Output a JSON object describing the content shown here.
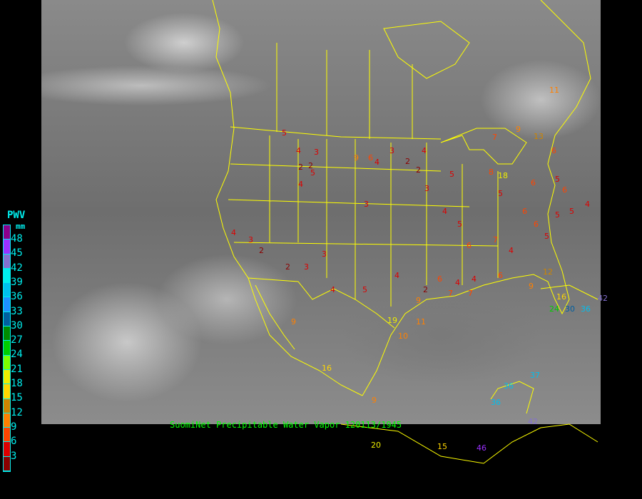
{
  "legend": {
    "title": "PWV",
    "unit": "mm",
    "ticks": [
      "48",
      "45",
      "42",
      "39",
      "36",
      "33",
      "30",
      "27",
      "24",
      "21",
      "18",
      "15",
      "12",
      "9",
      "6",
      "3"
    ],
    "colors": [
      "#8b008b",
      "#9b30ff",
      "#8470d0",
      "#00eeee",
      "#00bfee",
      "#1e90ff",
      "#005f9f",
      "#008b00",
      "#00cd00",
      "#7fff00",
      "#eeee00",
      "#ffd700",
      "#cd8500",
      "#ff8000",
      "#ff4500",
      "#dd0000",
      "#8b0000"
    ]
  },
  "caption": "SuomiNet Precipitable Water Vapor 120113/1945",
  "boundary_color": "#ffff00",
  "stations": [
    "5",
    "4",
    "3",
    "5",
    "4",
    "2",
    "2",
    "3",
    "4",
    "9",
    "6",
    "3",
    "2",
    "4",
    "2",
    "3",
    "5",
    "7",
    "4",
    "5",
    "6",
    "7",
    "9",
    "13",
    "6",
    "8",
    "5",
    "6",
    "6",
    "4",
    "3",
    "2",
    "2",
    "3",
    "3",
    "4",
    "5",
    "4",
    "2",
    "6",
    "4",
    "4",
    "4",
    "5",
    "5",
    "5",
    "4",
    "5",
    "6",
    "6",
    "6",
    "7",
    "7",
    "9",
    "12",
    "16",
    "24",
    "30",
    "36",
    "42",
    "9",
    "16",
    "18",
    "20",
    "15",
    "9",
    "11",
    "10",
    "9",
    "19",
    "11",
    "46",
    "36",
    "36",
    "37",
    "42"
  ]
}
